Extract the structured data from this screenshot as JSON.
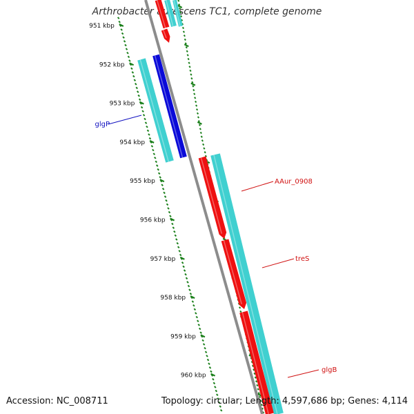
{
  "title": "Arthrobacter aurescens TC1, complete genome",
  "footer": {
    "accession": "Accession: NC_008711",
    "summary": "Topology: circular; Length: 4,597,686 bp; Genes: 4,114"
  },
  "colors": {
    "backbone": "#8c8c8c",
    "ticks": "#1a7f1a",
    "cds": "#40d0d0",
    "forward_gene": "#ee1111",
    "reverse_gene": "#0a0ad8",
    "label_blue": "#1010c0",
    "label_red": "#d01010"
  },
  "ruler": {
    "labels": [
      "951 kbp",
      "952 kbp",
      "953 kbp",
      "954 kbp",
      "955 kbp",
      "956 kbp",
      "957 kbp",
      "958 kbp",
      "959 kbp",
      "960 kbp"
    ]
  },
  "genes": [
    {
      "name": "glgP",
      "strand": "reverse",
      "color_key": "label_blue"
    },
    {
      "name": "AAur_0908",
      "strand": "forward",
      "color_key": "label_red"
    },
    {
      "name": "treS",
      "strand": "forward",
      "color_key": "label_red"
    },
    {
      "name": "glgB",
      "strand": "forward",
      "color_key": "label_red"
    }
  ]
}
